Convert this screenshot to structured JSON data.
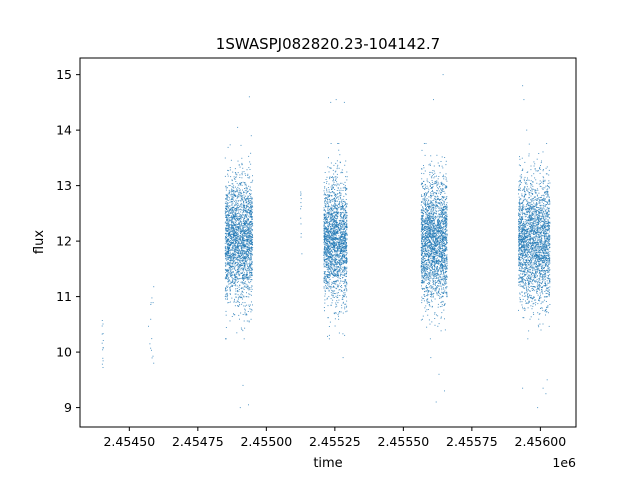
{
  "chart_data": {
    "type": "scatter",
    "title": "1SWASPJ082820.23-104142.7",
    "xlabel": "time",
    "ylabel": "flux",
    "x_offset_label": "1e6",
    "xlim": [
      2454320,
      2456130
    ],
    "ylim": [
      8.65,
      15.3
    ],
    "x_ticks": [
      2454500,
      2454750,
      2455000,
      2455250,
      2455500,
      2455750,
      2456000
    ],
    "x_tick_labels": [
      "2.45450",
      "2.45475",
      "2.45500",
      "2.45525",
      "2.45550",
      "2.45575",
      "2.45600"
    ],
    "y_ticks": [
      9,
      10,
      11,
      12,
      13,
      14,
      15
    ],
    "y_tick_labels": [
      "9",
      "10",
      "11",
      "12",
      "13",
      "14",
      "15"
    ],
    "grid": false,
    "marker_color": "#1f77b4",
    "series": [
      {
        "clusters": [
          {
            "x_range": [
              2454400,
              2454405
            ],
            "y_center": 10.2,
            "y_spread": 0.3,
            "count": 14
          },
          {
            "x_range": [
              2454570,
              2454590
            ],
            "y_center": 10.6,
            "y_spread": 0.45,
            "count": 14
          },
          {
            "x_range": [
              2454850,
              2454950
            ],
            "y_center": 12.0,
            "y_spread": 0.55,
            "count": 2300
          },
          {
            "x_range": [
              2455125,
              2455130
            ],
            "y_center": 12.7,
            "y_spread": 0.35,
            "count": 12
          },
          {
            "x_range": [
              2455210,
              2455295
            ],
            "y_center": 12.0,
            "y_spread": 0.55,
            "count": 2000
          },
          {
            "x_range": [
              2455565,
              2455660
            ],
            "y_center": 12.0,
            "y_spread": 0.55,
            "count": 2300
          },
          {
            "x_range": [
              2455920,
              2456035
            ],
            "y_center": 12.0,
            "y_spread": 0.55,
            "count": 2500
          }
        ],
        "outliers": [
          {
            "x": 2454938,
            "y": 14.6
          },
          {
            "x": 2454895,
            "y": 14.05
          },
          {
            "x": 2454945,
            "y": 13.9
          },
          {
            "x": 2454905,
            "y": 9.0
          },
          {
            "x": 2454935,
            "y": 9.05
          },
          {
            "x": 2454915,
            "y": 9.4
          },
          {
            "x": 2455235,
            "y": 14.5
          },
          {
            "x": 2455255,
            "y": 14.55
          },
          {
            "x": 2455285,
            "y": 14.5
          },
          {
            "x": 2455280,
            "y": 9.9
          },
          {
            "x": 2455230,
            "y": 10.3
          },
          {
            "x": 2455645,
            "y": 15.0
          },
          {
            "x": 2455610,
            "y": 14.55
          },
          {
            "x": 2455620,
            "y": 9.1
          },
          {
            "x": 2455650,
            "y": 9.3
          },
          {
            "x": 2455630,
            "y": 9.6
          },
          {
            "x": 2455600,
            "y": 9.9
          },
          {
            "x": 2455935,
            "y": 14.8
          },
          {
            "x": 2455940,
            "y": 14.55
          },
          {
            "x": 2455950,
            "y": 14.0
          },
          {
            "x": 2455990,
            "y": 9.0
          },
          {
            "x": 2456010,
            "y": 9.35
          },
          {
            "x": 2455935,
            "y": 9.35
          },
          {
            "x": 2456020,
            "y": 9.25
          },
          {
            "x": 2456025,
            "y": 9.5
          }
        ]
      }
    ]
  }
}
